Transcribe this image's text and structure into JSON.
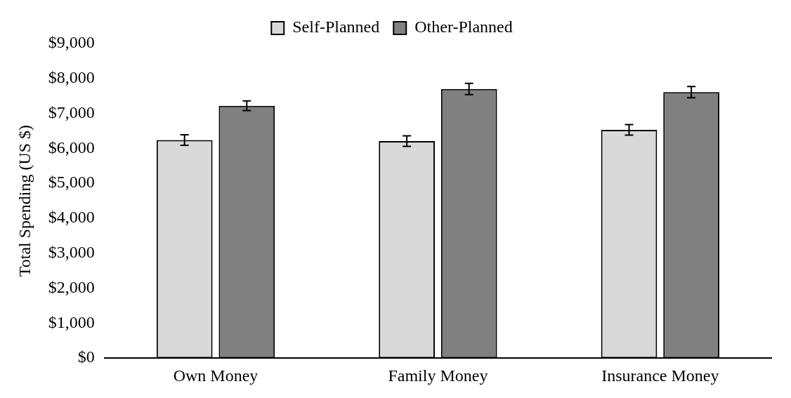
{
  "chart_data": {
    "type": "bar",
    "ylabel": "Total Spending (US $)",
    "categories": [
      "Own Money",
      "Family Money",
      "Insurance Money"
    ],
    "series": [
      {
        "name": "Self-Planned",
        "color": "#d9d9d9",
        "values": [
          6240,
          6210,
          6530
        ],
        "errors": [
          150,
          150,
          150
        ]
      },
      {
        "name": "Other-Planned",
        "color": "#808080",
        "values": [
          7220,
          7700,
          7610
        ],
        "errors": [
          140,
          160,
          160
        ]
      }
    ],
    "ylim": [
      0,
      9000
    ],
    "yticks": [
      {
        "value": 0,
        "label": "$0"
      },
      {
        "value": 1000,
        "label": "$1,000"
      },
      {
        "value": 2000,
        "label": "$2,000"
      },
      {
        "value": 3000,
        "label": "$3,000"
      },
      {
        "value": 4000,
        "label": "$4,000"
      },
      {
        "value": 5000,
        "label": "$5,000"
      },
      {
        "value": 6000,
        "label": "$6,000"
      },
      {
        "value": 7000,
        "label": "$7,000"
      },
      {
        "value": 8000,
        "label": "$8,000"
      },
      {
        "value": 9000,
        "label": "$9,000"
      }
    ],
    "grid": false,
    "legend": "top"
  }
}
